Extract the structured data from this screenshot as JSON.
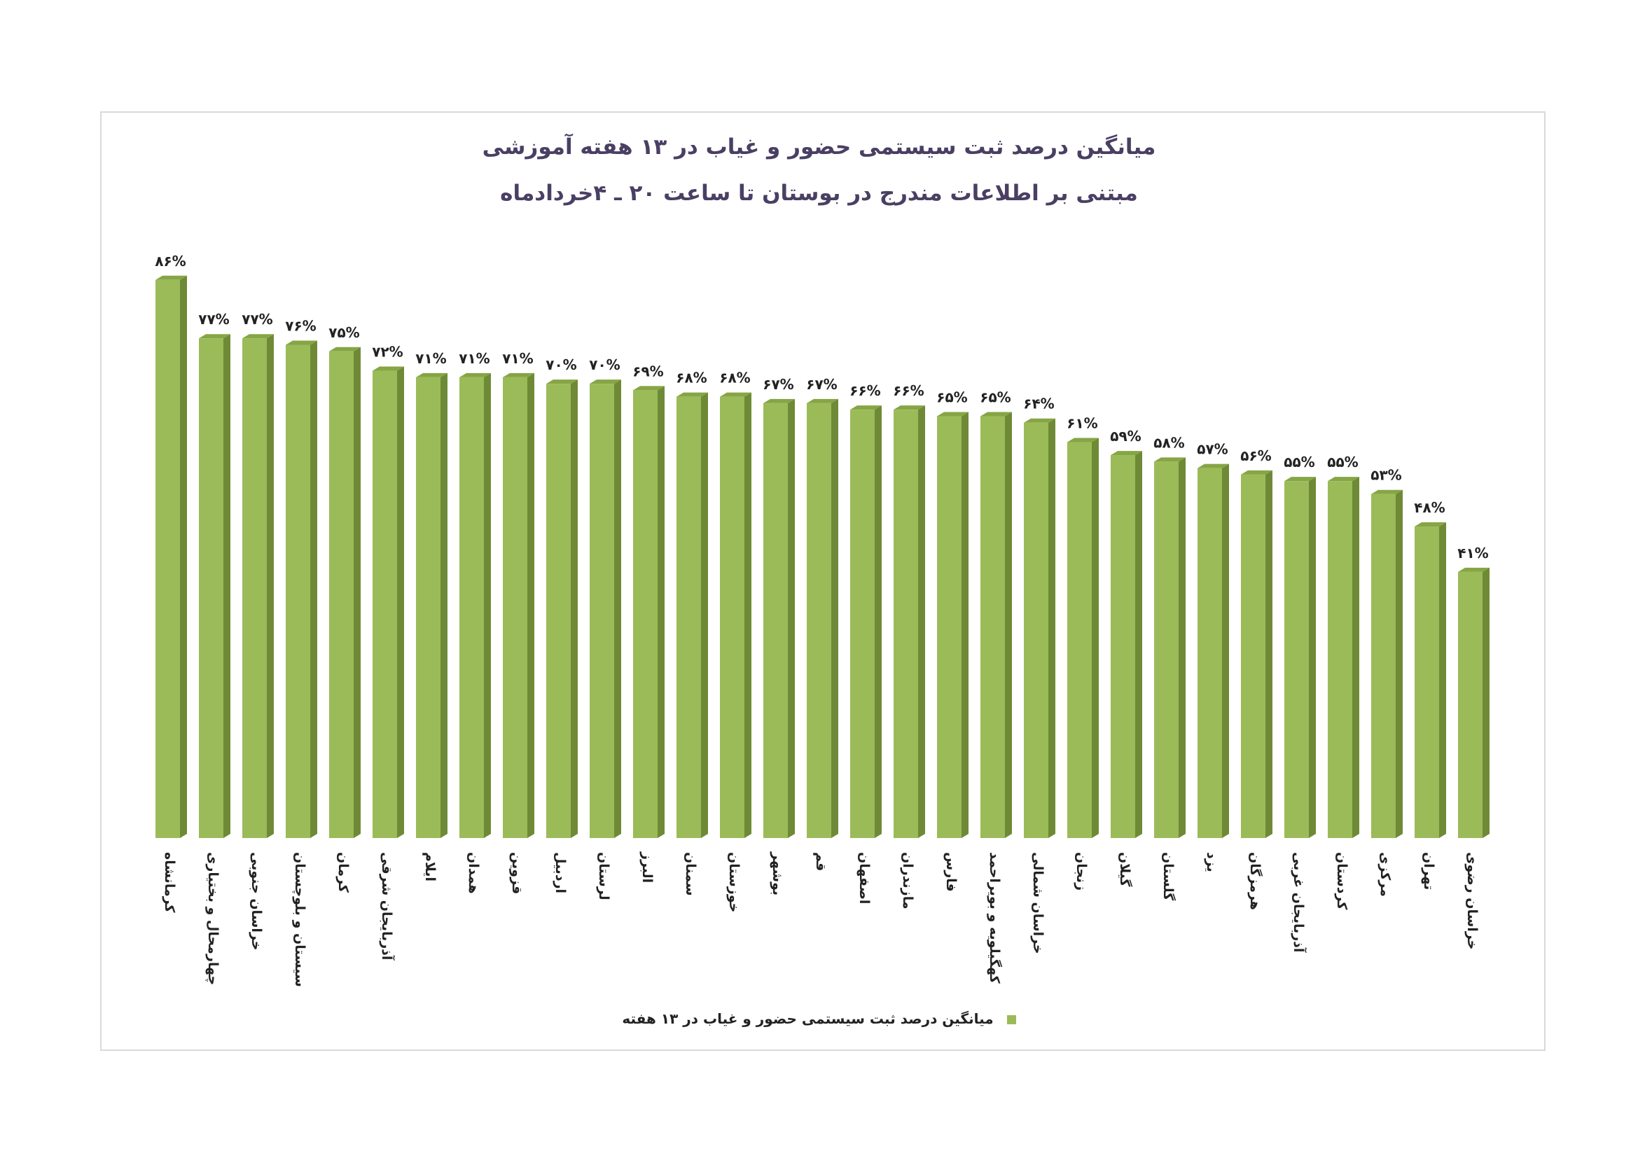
{
  "chart_data": {
    "type": "bar",
    "title": "میانگین درصد ثبت سیستمی حضور و غیاب در ۱۳ هفته آموزشی",
    "subtitle": "مبتنی بر اطلاعات مندرج در بوستان تا ساعت ۲۰ ـ ۴خردادماه",
    "series": [
      {
        "name": "میانگین درصد ثبت سیستمی حضور و غیاب در ۱۳ هفته",
        "color": "#9bbb59",
        "values": [
          86,
          77,
          77,
          76,
          75,
          72,
          71,
          71,
          71,
          70,
          70,
          69,
          68,
          68,
          67,
          67,
          66,
          66,
          65,
          65,
          64,
          61,
          59,
          58,
          57,
          56,
          55,
          55,
          53,
          48,
          41
        ]
      }
    ],
    "categories": [
      "کرمانشاه",
      "چهارمحال و بختیاری",
      "خراسان جنوبی",
      "سیستان و بلوچستان",
      "کرمان",
      "آذربایجان شرقی",
      "ایلام",
      "همدان",
      "قزوین",
      "اردبیل",
      "لرستان",
      "البرز",
      "سمنان",
      "خوزستان",
      "بوشهر",
      "قم",
      "اصفهان",
      "مازندران",
      "فارس",
      "کهگیلویه و بویراحمد",
      "خراسان شمالی",
      "زنجان",
      "گیلان",
      "گلستان",
      "یزد",
      "هرمزگان",
      "آذربایجان غربی",
      "کردستان",
      "مرکزی",
      "تهران",
      "خراسان رضوی"
    ],
    "labels": [
      "۸۶%",
      "۷۷%",
      "۷۷%",
      "۷۶%",
      "۷۵%",
      "۷۲%",
      "۷۱%",
      "۷۱%",
      "۷۱%",
      "۷۰%",
      "۷۰%",
      "۶۹%",
      "۶۸%",
      "۶۸%",
      "۶۷%",
      "۶۷%",
      "۶۶%",
      "۶۶%",
      "۶۵%",
      "۶۵%",
      "۶۴%",
      "۶۱%",
      "۵۹%",
      "۵۸%",
      "۵۷%",
      "۵۶%",
      "۵۵%",
      "۵۵%",
      "۵۳%",
      "۴۸%",
      "۴۱%"
    ],
    "ylim": [
      0,
      100
    ],
    "grid": false,
    "legend_position": "bottom"
  }
}
